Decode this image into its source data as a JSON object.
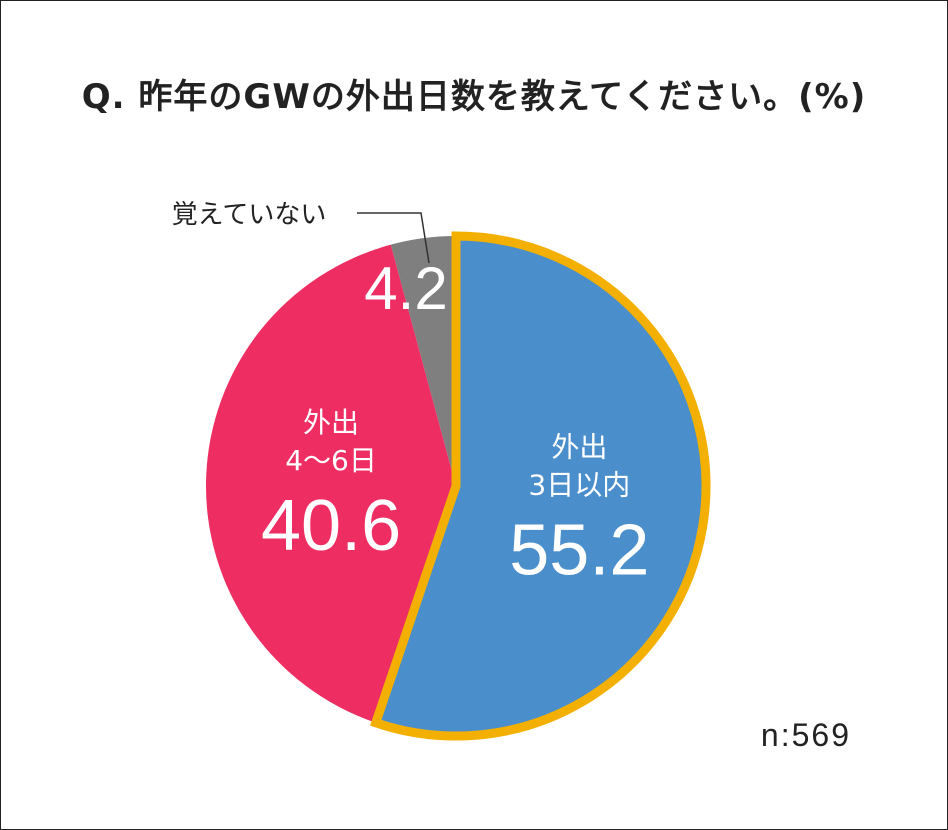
{
  "title": "Q. 昨年のGWの外出日数を教えてください。(%)",
  "sample": "n:569",
  "chart_data": {
    "type": "pie",
    "title": "Q. 昨年のGWの外出日数を教えてください。(%)",
    "unit": "%",
    "slices": [
      {
        "name_lines": [
          "外出",
          "3日以内"
        ],
        "value": 55.2,
        "label": "55.2",
        "color": "#4a8ecb",
        "highlight": true
      },
      {
        "name_lines": [
          "外出",
          "4〜6日"
        ],
        "value": 40.6,
        "label": "40.6",
        "color": "#ee2d63",
        "highlight": false
      },
      {
        "name_lines": [
          "覚えていない"
        ],
        "value": 4.2,
        "label": "4.2",
        "color": "#7f7f7f",
        "highlight": false
      }
    ],
    "highlight_color": "#f4b000"
  }
}
